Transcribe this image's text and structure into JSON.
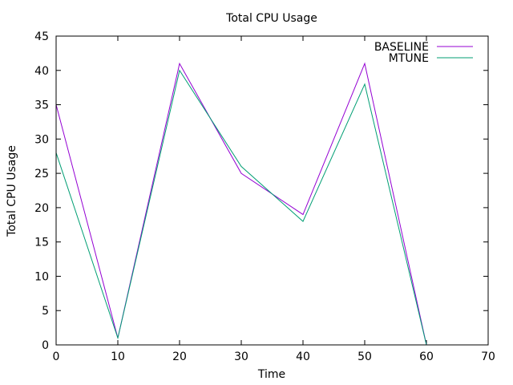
{
  "chart_data": {
    "type": "line",
    "title": "Total CPU Usage",
    "xlabel": "Time",
    "ylabel": "Total CPU Usage",
    "xlim": [
      0,
      70
    ],
    "ylim": [
      0,
      45
    ],
    "xticks": [
      "0",
      "10",
      "20",
      "30",
      "40",
      "50",
      "60",
      "70"
    ],
    "yticks": [
      "0",
      "5",
      "10",
      "15",
      "20",
      "25",
      "30",
      "35",
      "40",
      "45"
    ],
    "x": [
      0,
      10,
      20,
      30,
      40,
      50,
      60
    ],
    "series": [
      {
        "name": "BASELINE",
        "color": "#9400d3",
        "values": [
          35,
          1,
          41,
          25,
          19,
          41,
          0
        ]
      },
      {
        "name": "MTUNE",
        "color": "#009e73",
        "values": [
          28,
          1,
          40,
          26,
          18,
          38,
          0
        ]
      }
    ],
    "grid": false,
    "legend_position": "top-right"
  }
}
